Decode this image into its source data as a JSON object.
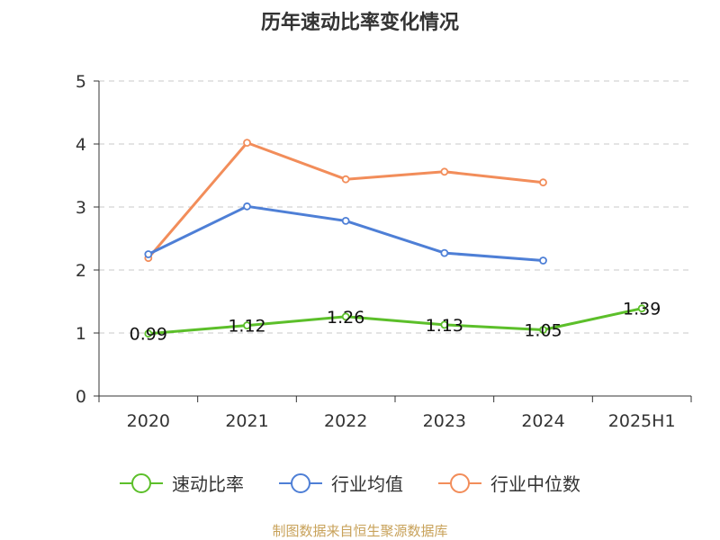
{
  "chart_data": {
    "type": "line",
    "title": "历年速动比率变化情况",
    "categories": [
      "2020",
      "2021",
      "2022",
      "2023",
      "2024",
      "2025H1"
    ],
    "y_ticks": [
      "0",
      "1",
      "2",
      "3",
      "4",
      "5"
    ],
    "ylim": [
      0,
      5
    ],
    "grid": true,
    "legend_position": "bottom",
    "series": [
      {
        "name": "速动比率",
        "color": "#5cbf2a",
        "values": [
          0.99,
          1.12,
          1.26,
          1.13,
          1.05,
          1.39
        ],
        "labels": [
          "0.99",
          "1.12",
          "1.26",
          "1.13",
          "1.05",
          "1.39"
        ]
      },
      {
        "name": "行业均值",
        "color": "#4e7fd6",
        "values": [
          2.25,
          3.01,
          2.78,
          2.27,
          2.15,
          null
        ]
      },
      {
        "name": "行业中位数",
        "color": "#f28d5a",
        "values": [
          2.19,
          4.02,
          3.44,
          3.56,
          3.39,
          null
        ]
      }
    ],
    "source": "制图数据来自恒生聚源数据库"
  }
}
